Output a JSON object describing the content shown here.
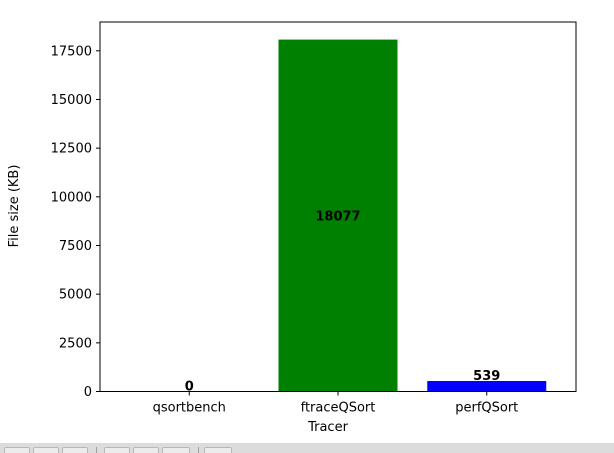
{
  "chart_data": {
    "type": "bar",
    "categories": [
      "qsortbench",
      "ftraceQSort",
      "perfQSort"
    ],
    "values": [
      0,
      18077,
      539
    ],
    "data_labels": [
      "0",
      "18077",
      "539"
    ],
    "colors": [
      "#ff0000",
      "#008000",
      "#0000ff"
    ],
    "title": "",
    "xlabel": "Tracer",
    "ylabel": "File size (KB)",
    "ylim": [
      0,
      18980
    ],
    "yticks": [
      0,
      2500,
      5000,
      7500,
      10000,
      12500,
      15000,
      17500
    ],
    "ytick_labels": [
      "0",
      "2500",
      "5000",
      "7500",
      "10000",
      "12500",
      "15000",
      "17500"
    ],
    "grid": false,
    "legend": "none"
  },
  "toolbar": {
    "buttons": [
      "home-icon",
      "back-icon",
      "forward-icon",
      "pan-icon",
      "zoom-icon",
      "subplots-icon",
      "save-icon"
    ]
  }
}
